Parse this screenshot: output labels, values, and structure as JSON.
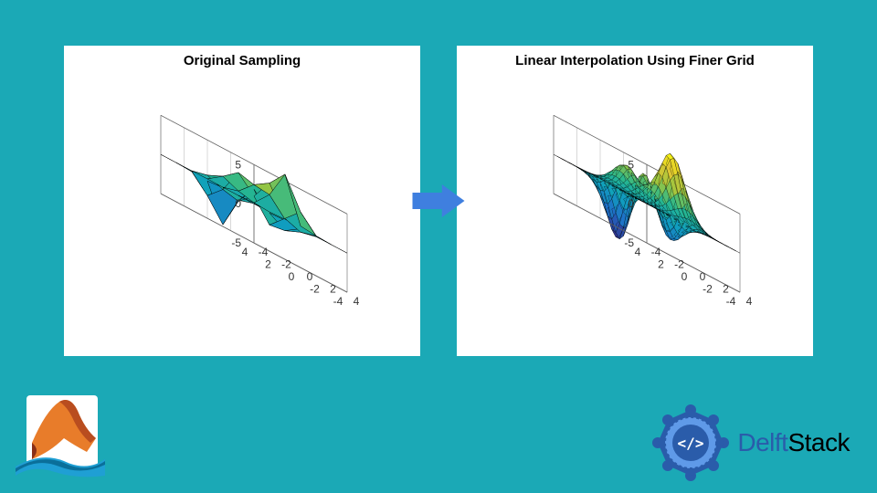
{
  "background_color": "#1ba9b6",
  "panel_bg": "#ffffff",
  "arrow_color": "#3f7fdf",
  "left_chart": {
    "title": "Original Sampling",
    "title_fontsize": 15,
    "title_weight": "bold",
    "type": "surface3d",
    "x_range": [
      -4,
      4
    ],
    "y_range": [
      -4,
      4
    ],
    "z_range": [
      -5,
      5
    ],
    "x_ticks": [
      -4,
      -2,
      0,
      2,
      4
    ],
    "y_ticks": [
      -4,
      -2,
      0,
      2,
      4
    ],
    "z_ticks": [
      -5,
      0,
      5
    ],
    "grid_step": 1,
    "tick_fontsize": 12,
    "axis_color": "#666666",
    "grid_color": "#cccccc",
    "surface_colormap": "parula",
    "surface_colors_sample": [
      "#352a87",
      "#2d6dd2",
      "#27b1a6",
      "#9cc63f",
      "#f9e43b"
    ],
    "mesh_edge_color": "#000000",
    "mesh_edge_width": 0.5
  },
  "right_chart": {
    "title": "Linear Interpolation Using Finer Grid",
    "title_fontsize": 15,
    "title_weight": "bold",
    "type": "surface3d",
    "x_range": [
      -4,
      4
    ],
    "y_range": [
      -4,
      4
    ],
    "z_range": [
      -5,
      5
    ],
    "x_ticks": [
      -4,
      -2,
      0,
      2,
      4
    ],
    "y_ticks": [
      -4,
      -2,
      0,
      2,
      4
    ],
    "z_ticks": [
      -5,
      0,
      5
    ],
    "grid_step": 0.25,
    "tick_fontsize": 12,
    "axis_color": "#666666",
    "grid_color": "#cccccc",
    "surface_colormap": "parula",
    "surface_colors_sample": [
      "#352a87",
      "#2d6dd2",
      "#27b1a6",
      "#9cc63f",
      "#f9e43b"
    ],
    "mesh_edge_color": "#000000",
    "mesh_edge_width": 0.3
  },
  "matlab_logo": {
    "name": "MATLAB",
    "bg_color": "#ffffff",
    "membrane_colors": [
      "#e87c2a",
      "#b94d1f",
      "#8a2f17"
    ],
    "accent_color": "#1f9fd4"
  },
  "delftstack_logo": {
    "text_delft": "Delft",
    "text_stack": "Stack",
    "delft_color": "#2a5caa",
    "stack_color": "#000000",
    "badge_outer": "#2a5caa",
    "badge_inner": "#5f9ae8",
    "badge_glyph": "</>"
  }
}
